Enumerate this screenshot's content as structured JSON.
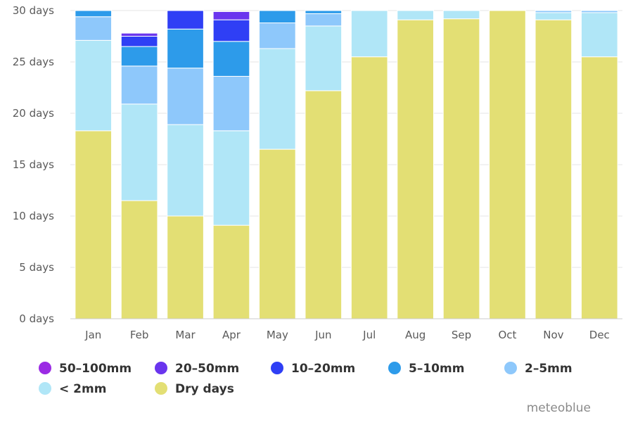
{
  "chart_data": {
    "type": "bar",
    "stacked": true,
    "categories": [
      "Jan",
      "Feb",
      "Mar",
      "Apr",
      "May",
      "Jun",
      "Jul",
      "Aug",
      "Sep",
      "Oct",
      "Nov",
      "Dec"
    ],
    "y_ticks": [
      "0 days",
      "5 days",
      "10 days",
      "15 days",
      "20 days",
      "25 days",
      "30 days"
    ],
    "ylim": [
      0,
      30
    ],
    "grid": true,
    "legend_position": "bottom-left",
    "series": [
      {
        "name": "Dry days",
        "color": "#e3df74",
        "values": [
          18.3,
          11.5,
          10.0,
          9.1,
          16.5,
          22.2,
          25.5,
          29.1,
          29.2,
          30.0,
          29.1,
          25.5
        ]
      },
      {
        "name": "< 2mm",
        "color": "#b0e6f7",
        "values": [
          8.8,
          9.4,
          8.9,
          9.2,
          9.8,
          6.3,
          4.5,
          0.9,
          0.8,
          0.0,
          0.7,
          4.3
        ]
      },
      {
        "name": "2-5mm",
        "color": "#8ec8fb",
        "values": [
          2.3,
          3.7,
          5.5,
          5.3,
          2.5,
          1.2,
          0.0,
          0.0,
          0.0,
          0.0,
          0.2,
          0.2
        ]
      },
      {
        "name": "5-10mm",
        "color": "#2d9bea",
        "values": [
          0.6,
          1.9,
          3.8,
          3.4,
          1.2,
          0.3,
          0.0,
          0.0,
          0.0,
          0.0,
          0.0,
          0.0
        ]
      },
      {
        "name": "10-20mm",
        "color": "#2f3ff5",
        "values": [
          0.0,
          1.0,
          1.8,
          2.1,
          0.0,
          0.0,
          0.0,
          0.0,
          0.0,
          0.0,
          0.0,
          0.0
        ]
      },
      {
        "name": "20-50mm",
        "color": "#6a35ee",
        "values": [
          0.0,
          0.3,
          0.0,
          0.8,
          0.0,
          0.0,
          0.0,
          0.0,
          0.0,
          0.0,
          0.0,
          0.0
        ]
      },
      {
        "name": "50-100mm",
        "color": "#9b2be4",
        "values": [
          0.0,
          0.0,
          0.0,
          0.0,
          0.0,
          0.0,
          0.0,
          0.0,
          0.0,
          0.0,
          0.0,
          0.0
        ]
      }
    ],
    "legend": [
      {
        "label": "50–100mm",
        "color": "#9b2be4"
      },
      {
        "label": "20–50mm",
        "color": "#6a35ee"
      },
      {
        "label": "10–20mm",
        "color": "#2f3ff5"
      },
      {
        "label": "5–10mm",
        "color": "#2d9bea"
      },
      {
        "label": "2–5mm",
        "color": "#8ec8fb"
      },
      {
        "label": "< 2mm",
        "color": "#b0e6f7"
      },
      {
        "label": "Dry days",
        "color": "#e3df74"
      }
    ],
    "credit": "meteoblue"
  }
}
